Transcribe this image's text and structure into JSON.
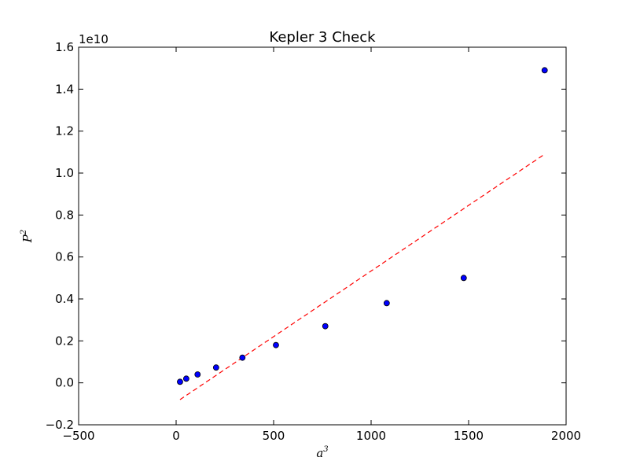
{
  "chart_data": {
    "type": "scatter",
    "title": "Kepler 3 Check",
    "xlabel_base": "a",
    "xlabel_exp": "3",
    "ylabel_base": "P",
    "ylabel_exp": "2",
    "y_offset_label": "1e10",
    "xlim": [
      -500,
      2000
    ],
    "ylim": [
      -0.2,
      1.6
    ],
    "x_ticks": [
      -500,
      0,
      500,
      1000,
      1500,
      2000
    ],
    "x_tick_labels": [
      "−500",
      "0",
      "500",
      "1000",
      "1500",
      "2000"
    ],
    "y_ticks": [
      -0.2,
      0.0,
      0.2,
      0.4,
      0.6,
      0.8,
      1.0,
      1.2,
      1.4,
      1.6
    ],
    "y_tick_labels": [
      "−0.2",
      "0.0",
      "0.2",
      "0.4",
      "0.6",
      "0.8",
      "1.0",
      "1.2",
      "1.4",
      "1.6"
    ],
    "y_scale_note": "y values in units of 1e10",
    "grid": false,
    "series": [
      {
        "kind": "scatter",
        "color": "#0000ff",
        "edge_color": "#000000",
        "x": [
          20,
          52,
          110,
          205,
          340,
          512,
          765,
          1080,
          1475,
          1890
        ],
        "y": [
          0.005,
          0.02,
          0.04,
          0.073,
          0.12,
          0.18,
          0.27,
          0.38,
          0.5,
          1.49
        ]
      },
      {
        "kind": "fit-line",
        "style": "dashed",
        "color": "#ff0000",
        "x": [
          20,
          1890
        ],
        "y": [
          -0.08,
          1.09
        ]
      }
    ]
  }
}
